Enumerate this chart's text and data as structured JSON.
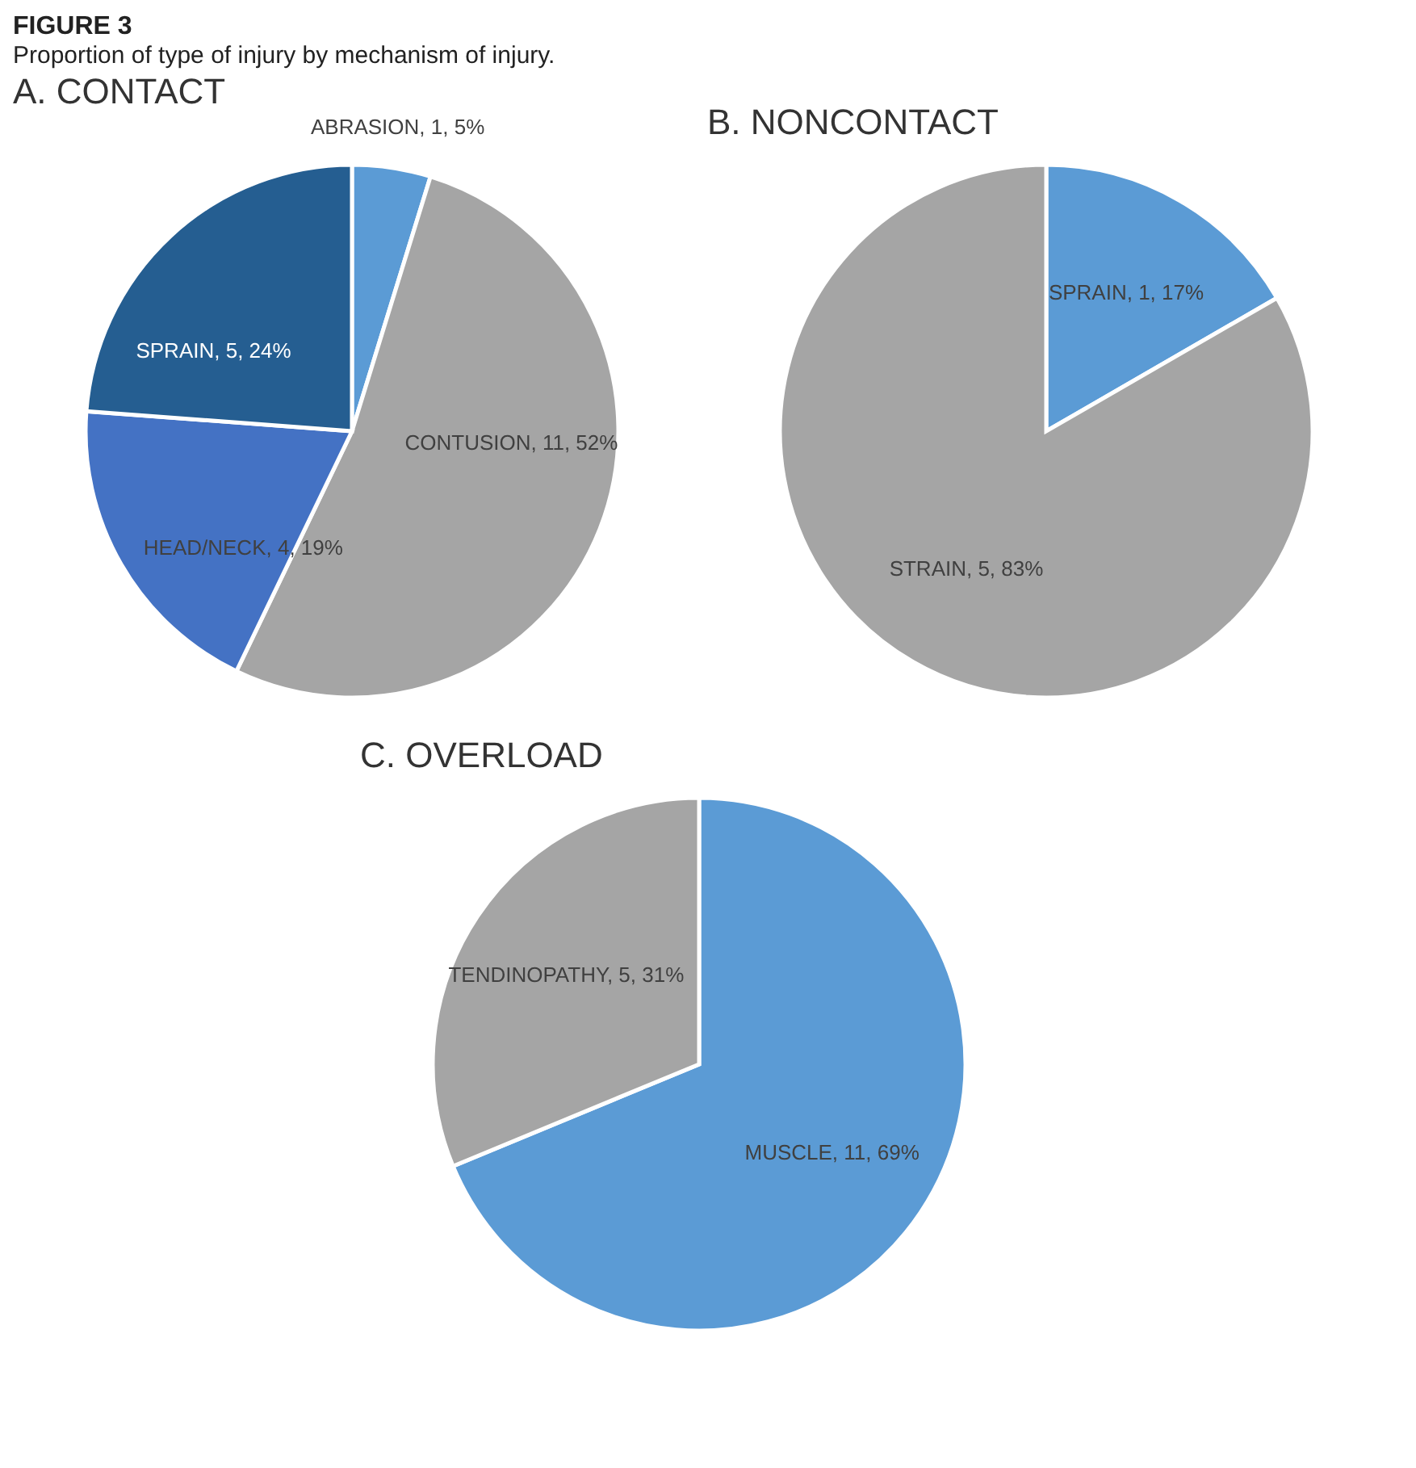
{
  "chart_data": [
    {
      "type": "pie",
      "title": "A. CONTACT",
      "annotations": [
        "FIGURE 3",
        "Proportion of type of injury by mechanism of injury."
      ],
      "categories": [
        "ABRASION",
        "CONTUSION",
        "HEAD/NECK",
        "SPRAIN"
      ],
      "values": [
        1,
        11,
        4,
        5
      ],
      "colors": [
        "#5b9bd5",
        "#a5a5a5",
        "#4472c4",
        "#255e91"
      ],
      "value_labels": [
        "1, 5%",
        "11, 52%",
        "4, 19%",
        "5, 24%"
      ]
    },
    {
      "type": "pie",
      "title": "B. NONCONTACT",
      "categories": [
        "SPRAIN",
        "STRAIN"
      ],
      "values": [
        1,
        5
      ],
      "colors": [
        "#5b9bd5",
        "#a5a5a5"
      ],
      "value_labels": [
        "1, 17%",
        "5, 83%"
      ]
    },
    {
      "type": "pie",
      "title": "C. OVERLOAD",
      "categories": [
        "MUSCLE",
        "TENDINOPATHY"
      ],
      "values": [
        11,
        5
      ],
      "colors": [
        "#5b9bd5",
        "#a5a5a5"
      ],
      "value_labels": [
        "11, 69%",
        "5, 31%"
      ]
    }
  ]
}
